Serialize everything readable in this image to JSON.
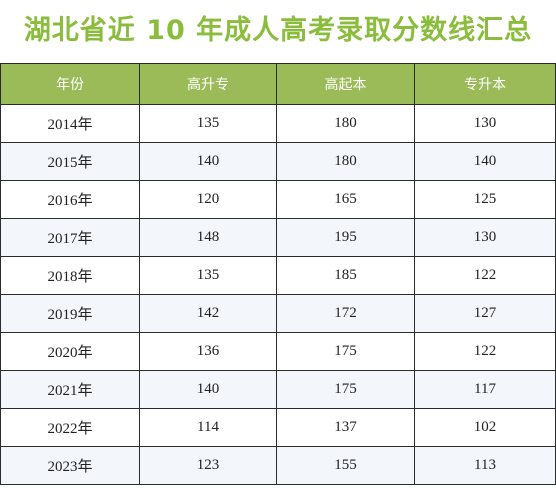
{
  "title": "湖北省近 10 年成人高考录取分数线汇总",
  "table": {
    "headers": [
      "年份",
      "高升专",
      "高起本",
      "专升本"
    ],
    "rows": [
      [
        "2014年",
        "135",
        "180",
        "130"
      ],
      [
        "2015年",
        "140",
        "180",
        "140"
      ],
      [
        "2016年",
        "120",
        "165",
        "125"
      ],
      [
        "2017年",
        "148",
        "195",
        "130"
      ],
      [
        "2018年",
        "135",
        "185",
        "122"
      ],
      [
        "2019年",
        "142",
        "172",
        "127"
      ],
      [
        "2020年",
        "136",
        "175",
        "122"
      ],
      [
        "2021年",
        "140",
        "175",
        "117"
      ],
      [
        "2022年",
        "114",
        "137",
        "102"
      ],
      [
        "2023年",
        "123",
        "155",
        "113"
      ]
    ]
  },
  "colors": {
    "title": "#8bbd3c",
    "header_bg": "#9bbb59",
    "stripe": "#f3f7fb"
  }
}
